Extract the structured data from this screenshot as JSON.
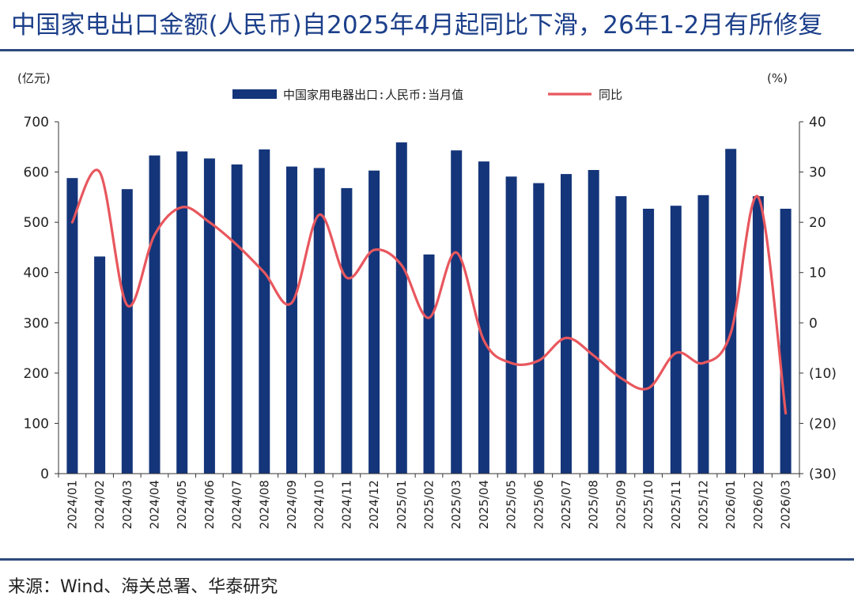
{
  "title": "中国家电出口金额(人民币)自2025年4月起同比下滑，26年1-2月有所修复",
  "source": "来源：Wind、海关总署、华泰研究",
  "colors": {
    "bar": "#14357a",
    "line": "#e8575e",
    "title": "#1c3f8a",
    "rule": "#2e4a7d"
  },
  "chart_data": {
    "type": "bar",
    "categories": [
      "2024/01",
      "2024/02",
      "2024/03",
      "2024/04",
      "2024/05",
      "2024/06",
      "2024/07",
      "2024/08",
      "2024/09",
      "2024/10",
      "2024/11",
      "2024/12",
      "2025/01",
      "2025/02",
      "2025/03",
      "2025/04",
      "2025/05",
      "2025/06",
      "2025/07",
      "2025/08",
      "2025/09",
      "2025/10",
      "2025/11",
      "2025/12",
      "2026/01",
      "2026/02",
      "2026/03"
    ],
    "series": [
      {
        "name": "中国家用电器出口:人民币:当月值",
        "type": "bar",
        "axis": "left",
        "values": [
          588,
          432,
          566,
          633,
          641,
          627,
          615,
          645,
          611,
          608,
          568,
          603,
          659,
          436,
          643,
          621,
          591,
          578,
          596,
          604,
          552,
          527,
          533,
          554,
          646,
          552,
          527
        ]
      },
      {
        "name": "同比",
        "type": "line",
        "axis": "right",
        "values": [
          20,
          30,
          3.5,
          17.5,
          23,
          20,
          15.5,
          10,
          4,
          21.5,
          9,
          14.5,
          11.5,
          1,
          14,
          -3.5,
          -8,
          -7.5,
          -3,
          -6.5,
          -11,
          -13,
          -6,
          -8,
          -2,
          25,
          -18
        ]
      }
    ],
    "left_unit": "(亿元)",
    "right_unit": "(%)",
    "ylim_left": [
      0,
      700
    ],
    "ylim_right": [
      -30,
      40
    ],
    "yticks_left": [
      "0",
      "100",
      "200",
      "300",
      "400",
      "500",
      "600",
      "700"
    ],
    "yticks_right": [
      "(30)",
      "(20)",
      "(10)",
      "0",
      "10",
      "20",
      "30",
      "40"
    ],
    "legend_position": "top",
    "grid": false
  }
}
